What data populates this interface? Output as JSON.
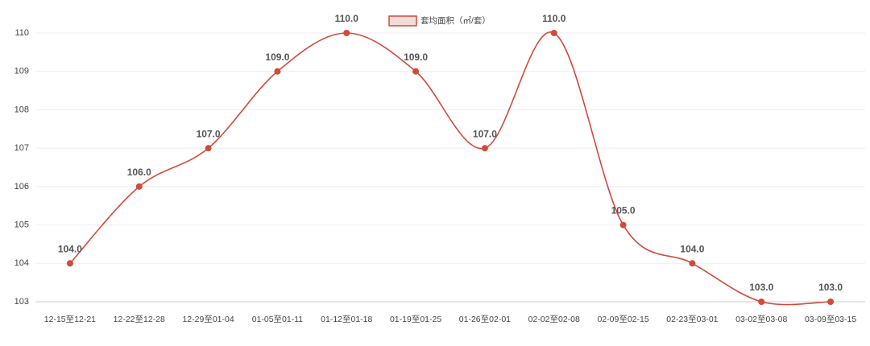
{
  "chart_data": {
    "type": "line",
    "categories": [
      "12-15至12-21",
      "12-22至12-28",
      "12-29至01-04",
      "01-05至01-11",
      "01-12至01-18",
      "01-19至01-25",
      "01-26至02-01",
      "02-02至02-08",
      "02-09至02-15",
      "02-23至03-01",
      "03-02至03-08",
      "03-09至03-15"
    ],
    "series": [
      {
        "name": "套均面积（㎡/套）",
        "color": "#d14a3a",
        "values": [
          104,
          106,
          107,
          109,
          110,
          109,
          107,
          110,
          105,
          104,
          103,
          103
        ],
        "value_labels": [
          "104.0",
          "106.0",
          "107.0",
          "109.0",
          "110.0",
          "109.0",
          "107.0",
          "110.0",
          "105.0",
          "104.0",
          "103.0",
          "103.0"
        ]
      }
    ],
    "ylim": [
      103,
      110
    ],
    "yticks": [
      103,
      104,
      105,
      106,
      107,
      108,
      109,
      110
    ],
    "grid": true,
    "legend": "top",
    "smooth": true
  }
}
